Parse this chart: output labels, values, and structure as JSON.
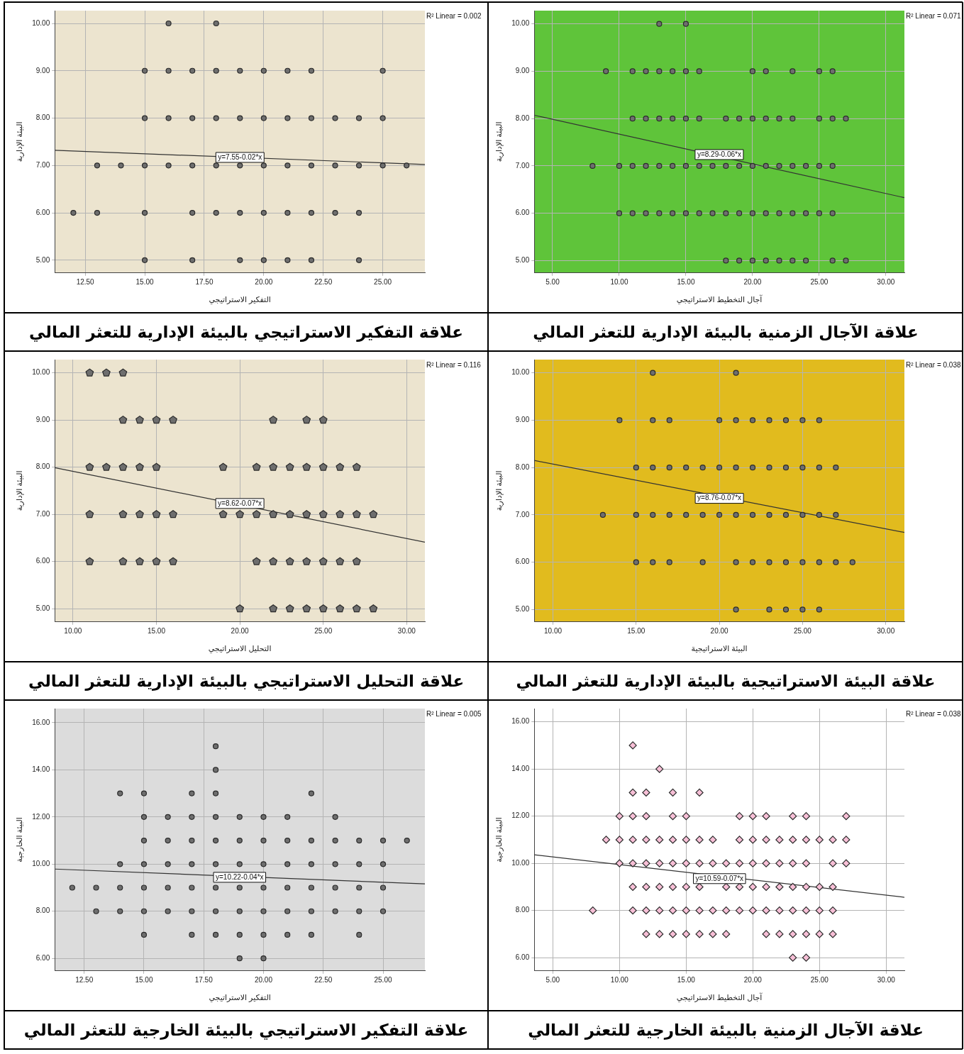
{
  "chart_data": [
    {
      "type": "scatter",
      "title": "علاقة التفكير الاستراتيجي بالبيئة الإدارية للتعثر المالي",
      "xlabel": "التفكير الاستراتيجي",
      "ylabel": "البيئة الإدارية",
      "grid": true,
      "xlim": [
        11.22,
        26.77
      ],
      "ylim": [
        4.73,
        10.27
      ],
      "xticks": [
        {
          "value": 12.5,
          "label": "12.50"
        },
        {
          "value": 15,
          "label": "15.00"
        },
        {
          "value": 17.5,
          "label": "17.50"
        },
        {
          "value": 20,
          "label": "20.00"
        },
        {
          "value": 22.5,
          "label": "22.50"
        },
        {
          "value": 25,
          "label": "25.00"
        }
      ],
      "yticks": [
        {
          "value": 5,
          "label": "5.00"
        },
        {
          "value": 6,
          "label": "6.00"
        },
        {
          "value": 7,
          "label": "7.00"
        },
        {
          "value": 8,
          "label": "8.00"
        },
        {
          "value": 9,
          "label": "9.00"
        },
        {
          "value": 10,
          "label": "10.00"
        }
      ],
      "series": [
        {
          "type": "scatter",
          "marker": "circle",
          "color": "#6e6e6e",
          "x": [
            16,
            18,
            15,
            16,
            17,
            18,
            19,
            20,
            21,
            22,
            25,
            15,
            16,
            17,
            18,
            19,
            20,
            21,
            22,
            23,
            24,
            25,
            13,
            14,
            15,
            16,
            17,
            18,
            19,
            20,
            21,
            22,
            23,
            24,
            25,
            26,
            12,
            13,
            15,
            17,
            18,
            19,
            20,
            21,
            22,
            23,
            24,
            15,
            17,
            19,
            20,
            21,
            22,
            24
          ],
          "values": [
            10,
            10,
            9,
            9,
            9,
            9,
            9,
            9,
            9,
            9,
            9,
            8,
            8,
            8,
            8,
            8,
            8,
            8,
            8,
            8,
            8,
            8,
            7,
            7,
            7,
            7,
            7,
            7,
            7,
            7,
            7,
            7,
            7,
            7,
            7,
            7,
            6,
            6,
            6,
            6,
            6,
            6,
            6,
            6,
            6,
            6,
            6,
            5,
            5,
            5,
            5,
            5,
            5,
            5
          ]
        },
        {
          "type": "line",
          "marker": "none",
          "color": "#333333",
          "x": [
            11.22,
            26.77
          ],
          "values": [
            7.32,
            7.02
          ]
        }
      ],
      "annotations": [
        "R² Linear = 0.002",
        {
          "text": "y=7.55-0.02*x",
          "x": 19,
          "y": 7.17
        }
      ]
    },
    {
      "type": "scatter",
      "title": "علاقة الآجال الزمنية بالبيئة الإدارية للتعثر المالي",
      "xlabel": "آجال التخطيط الاستراتيجي",
      "ylabel": "البيئة الإدارية",
      "grid": true,
      "xlim": [
        3.63,
        31.39
      ],
      "ylim": [
        4.74,
        10.28
      ],
      "xticks": [
        {
          "value": 5,
          "label": "5.00"
        },
        {
          "value": 10,
          "label": "10.00"
        },
        {
          "value": 15,
          "label": "15.00"
        },
        {
          "value": 20,
          "label": "20.00"
        },
        {
          "value": 25,
          "label": "25.00"
        },
        {
          "value": 30,
          "label": "30.00"
        }
      ],
      "yticks": [
        {
          "value": 5,
          "label": "5.00"
        },
        {
          "value": 6,
          "label": "6.00"
        },
        {
          "value": 7,
          "label": "7.00"
        },
        {
          "value": 8,
          "label": "8.00"
        },
        {
          "value": 9,
          "label": "9.00"
        },
        {
          "value": 10,
          "label": "10.00"
        }
      ],
      "series": [
        {
          "type": "scatter",
          "marker": "circle",
          "color": "#6e6e6e",
          "x": [
            13,
            15,
            9,
            11,
            12,
            13,
            14,
            15,
            16,
            20,
            21,
            23,
            25,
            26,
            11,
            12,
            13,
            14,
            15,
            16,
            18,
            19,
            20,
            21,
            22,
            23,
            25,
            26,
            27,
            8,
            10,
            11,
            12,
            13,
            14,
            15,
            16,
            17,
            18,
            19,
            20,
            21,
            22,
            23,
            24,
            25,
            26,
            10,
            11,
            12,
            13,
            14,
            15,
            16,
            17,
            18,
            19,
            20,
            21,
            22,
            23,
            24,
            25,
            26,
            18,
            19,
            20,
            21,
            22,
            23,
            24,
            26,
            27
          ],
          "values": [
            10,
            10,
            9,
            9,
            9,
            9,
            9,
            9,
            9,
            9,
            9,
            9,
            9,
            9,
            8,
            8,
            8,
            8,
            8,
            8,
            8,
            8,
            8,
            8,
            8,
            8,
            8,
            8,
            8,
            7,
            7,
            7,
            7,
            7,
            7,
            7,
            7,
            7,
            7,
            7,
            7,
            7,
            7,
            7,
            7,
            7,
            7,
            6,
            6,
            6,
            6,
            6,
            6,
            6,
            6,
            6,
            6,
            6,
            6,
            6,
            6,
            6,
            6,
            6,
            5,
            5,
            5,
            5,
            5,
            5,
            5,
            5,
            5
          ]
        },
        {
          "type": "line",
          "marker": "none",
          "color": "#333333",
          "x": [
            3.63,
            31.39
          ],
          "values": [
            8.07,
            6.33
          ]
        }
      ],
      "annotations": [
        "R² Linear = 0.071",
        {
          "text": "y=8.29-0.06*x",
          "x": 17.5,
          "y": 7.24
        }
      ]
    },
    {
      "type": "scatter",
      "title": "علاقة التحليل الاستراتيجي بالبيئة الإدارية للتعثر المالي",
      "xlabel": "التحليل الاستراتيجي",
      "ylabel": "البيئة الإدارية",
      "grid": true,
      "xlim": [
        8.91,
        31.09
      ],
      "ylim": [
        4.72,
        10.28
      ],
      "xticks": [
        {
          "value": 10,
          "label": "10.00"
        },
        {
          "value": 15,
          "label": "15.00"
        },
        {
          "value": 20,
          "label": "20.00"
        },
        {
          "value": 25,
          "label": "25.00"
        },
        {
          "value": 30,
          "label": "30.00"
        }
      ],
      "yticks": [
        {
          "value": 5,
          "label": "5.00"
        },
        {
          "value": 6,
          "label": "6.00"
        },
        {
          "value": 7,
          "label": "7.00"
        },
        {
          "value": 8,
          "label": "8.00"
        },
        {
          "value": 9,
          "label": "9.00"
        },
        {
          "value": 10,
          "label": "10.00"
        }
      ],
      "series": [
        {
          "type": "scatter",
          "color": "#6e6e6e",
          "x": [
            11,
            12,
            13,
            13,
            14,
            15,
            16,
            22,
            24,
            25,
            11,
            12,
            13,
            14,
            15,
            19,
            21,
            22,
            23,
            24,
            25,
            26,
            27,
            11,
            13,
            14,
            15,
            16,
            19,
            20,
            21,
            22,
            23,
            24,
            25,
            26,
            27,
            28,
            11,
            13,
            14,
            15,
            16,
            21,
            22,
            23,
            24,
            25,
            26,
            27,
            20,
            22,
            23,
            24,
            25,
            26,
            27,
            28
          ],
          "values": [
            10,
            10,
            10,
            9,
            9,
            9,
            9,
            9,
            9,
            9,
            8,
            8,
            8,
            8,
            8,
            8,
            8,
            8,
            8,
            8,
            8,
            8,
            8,
            7,
            7,
            7,
            7,
            7,
            7,
            7,
            7,
            7,
            7,
            7,
            7,
            7,
            7,
            7,
            6,
            6,
            6,
            6,
            6,
            6,
            6,
            6,
            6,
            6,
            6,
            6,
            5,
            5,
            5,
            5,
            5,
            5,
            5,
            5
          ]
        },
        {
          "type": "line",
          "marker": "none",
          "color": "#333333",
          "x": [
            8.91,
            31.09
          ],
          "values": [
            7.99,
            6.41
          ]
        }
      ],
      "annotations": [
        "R² Linear = 0.116",
        {
          "text": "y=8.62-0.07*x",
          "x": 20,
          "y": 7.23
        }
      ]
    },
    {
      "type": "scatter",
      "title": "علاقة البيئة الاستراتيجية بالبيئة الإدارية للتعثر المالي",
      "xlabel": "البيئة الاستراتيجية",
      "ylabel": "البيئة الإدارية",
      "grid": true,
      "xlim": [
        8.88,
        31.12
      ],
      "ylim": [
        4.74,
        10.28
      ],
      "xticks": [
        {
          "value": 10,
          "label": "10.00"
        },
        {
          "value": 15,
          "label": "15.00"
        },
        {
          "value": 20,
          "label": "20.00"
        },
        {
          "value": 25,
          "label": "25.00"
        },
        {
          "value": 30,
          "label": "30.00"
        }
      ],
      "yticks": [
        {
          "value": 5,
          "label": "5.00"
        },
        {
          "value": 6,
          "label": "6.00"
        },
        {
          "value": 7,
          "label": "7.00"
        },
        {
          "value": 8,
          "label": "8.00"
        },
        {
          "value": 9,
          "label": "9.00"
        },
        {
          "value": 10,
          "label": "10.00"
        }
      ],
      "series": [
        {
          "type": "scatter",
          "marker": "circle",
          "color": "#6e6e6e",
          "x": [
            16,
            21,
            14,
            16,
            17,
            20,
            21,
            22,
            23,
            24,
            25,
            26,
            15,
            16,
            17,
            18,
            19,
            20,
            21,
            22,
            23,
            24,
            25,
            26,
            27,
            13,
            15,
            16,
            17,
            18,
            19,
            20,
            21,
            22,
            23,
            24,
            25,
            26,
            27,
            15,
            16,
            17,
            19,
            21,
            22,
            23,
            24,
            25,
            26,
            27,
            28,
            21,
            23,
            24,
            25,
            26
          ],
          "values": [
            10,
            10,
            9,
            9,
            9,
            9,
            9,
            9,
            9,
            9,
            9,
            9,
            8,
            8,
            8,
            8,
            8,
            8,
            8,
            8,
            8,
            8,
            8,
            8,
            8,
            7,
            7,
            7,
            7,
            7,
            7,
            7,
            7,
            7,
            7,
            7,
            7,
            7,
            7,
            6,
            6,
            6,
            6,
            6,
            6,
            6,
            6,
            6,
            6,
            6,
            6,
            5,
            5,
            5,
            5,
            5
          ]
        },
        {
          "type": "line",
          "marker": "none",
          "color": "#333333",
          "x": [
            8.88,
            31.12
          ],
          "values": [
            8.15,
            6.63
          ]
        }
      ],
      "annotations": [
        "R² Linear = 0.038",
        {
          "text": "y=8.76-0.07*x",
          "x": 20,
          "y": 7.35
        }
      ]
    },
    {
      "type": "scatter",
      "title": "علاقة التفكير الاستراتيجي بالبيئة الخارجية للتعثر المالي",
      "xlabel": "التفكير الاستراتيجي",
      "ylabel": "البيئة الخارجية",
      "grid": true,
      "xlim": [
        11.27,
        26.75
      ],
      "ylim": [
        5.47,
        16.6
      ],
      "xticks": [
        {
          "value": 12.5,
          "label": "12.50"
        },
        {
          "value": 15,
          "label": "15.00"
        },
        {
          "value": 17.5,
          "label": "17.50"
        },
        {
          "value": 20,
          "label": "20.00"
        },
        {
          "value": 22.5,
          "label": "22.50"
        },
        {
          "value": 25,
          "label": "25.00"
        }
      ],
      "yticks": [
        {
          "value": 6,
          "label": "6.00"
        },
        {
          "value": 8,
          "label": "8.00"
        },
        {
          "value": 10,
          "label": "10.00"
        },
        {
          "value": 12,
          "label": "12.00"
        },
        {
          "value": 14,
          "label": "14.00"
        },
        {
          "value": 16,
          "label": "16.00"
        }
      ],
      "series": [
        {
          "type": "scatter",
          "marker": "circle",
          "color": "#6e6e6e",
          "x": [
            18,
            18,
            14,
            15,
            17,
            18,
            22,
            15,
            16,
            17,
            18,
            19,
            20,
            21,
            23,
            15,
            16,
            17,
            18,
            19,
            20,
            21,
            22,
            23,
            24,
            25,
            26,
            14,
            15,
            16,
            17,
            18,
            19,
            20,
            21,
            22,
            23,
            24,
            25,
            12,
            13,
            14,
            15,
            16,
            17,
            18,
            19,
            20,
            21,
            22,
            23,
            24,
            25,
            13,
            14,
            15,
            16,
            17,
            18,
            19,
            20,
            21,
            22,
            23,
            24,
            25,
            15,
            17,
            18,
            19,
            20,
            21,
            22,
            24,
            19,
            20
          ],
          "values": [
            15,
            14,
            13,
            13,
            13,
            13,
            13,
            12,
            12,
            12,
            12,
            12,
            12,
            12,
            12,
            11,
            11,
            11,
            11,
            11,
            11,
            11,
            11,
            11,
            11,
            11,
            11,
            10,
            10,
            10,
            10,
            10,
            10,
            10,
            10,
            10,
            10,
            10,
            10,
            9,
            9,
            9,
            9,
            9,
            9,
            9,
            9,
            9,
            9,
            9,
            9,
            9,
            9,
            8,
            8,
            8,
            8,
            8,
            8,
            8,
            8,
            8,
            8,
            8,
            8,
            8,
            7,
            7,
            7,
            7,
            7,
            7,
            7,
            7,
            6,
            6
          ]
        },
        {
          "type": "line",
          "marker": "none",
          "color": "#333333",
          "x": [
            11.27,
            26.75
          ],
          "values": [
            9.79,
            9.16
          ]
        }
      ],
      "annotations": [
        "R² Linear = 0.005",
        {
          "text": "y=10.22-0.04*x",
          "x": 19,
          "y": 9.44
        }
      ]
    },
    {
      "type": "scatter",
      "title": "علاقة الآجال الزمنية بالبيئة الخارجية للتعثر المالي",
      "xlabel": "آجال التخطيط الاستراتيجي",
      "ylabel": "البيئة الخارجية",
      "grid": true,
      "xlim": [
        3.61,
        31.37
      ],
      "ylim": [
        5.44,
        16.56
      ],
      "xticks": [
        {
          "value": 5,
          "label": "5.00"
        },
        {
          "value": 10,
          "label": "10.00"
        },
        {
          "value": 15,
          "label": "15.00"
        },
        {
          "value": 20,
          "label": "20.00"
        },
        {
          "value": 25,
          "label": "25.00"
        },
        {
          "value": 30,
          "label": "30.00"
        }
      ],
      "yticks": [
        {
          "value": 6,
          "label": "6.00"
        },
        {
          "value": 8,
          "label": "8.00"
        },
        {
          "value": 10,
          "label": "10.00"
        },
        {
          "value": 12,
          "label": "12.00"
        },
        {
          "value": 14,
          "label": "14.00"
        },
        {
          "value": 16,
          "label": "16.00"
        }
      ],
      "series": [
        {
          "type": "scatter",
          "marker": "diamond",
          "color": "#f7bfd6",
          "x": [
            11,
            13,
            11,
            12,
            14,
            16,
            10,
            11,
            12,
            14,
            15,
            19,
            20,
            21,
            23,
            24,
            27,
            9,
            10,
            11,
            12,
            13,
            14,
            15,
            16,
            17,
            19,
            20,
            21,
            22,
            23,
            24,
            25,
            26,
            27,
            10,
            11,
            12,
            13,
            14,
            15,
            16,
            17,
            18,
            19,
            20,
            21,
            22,
            23,
            24,
            26,
            27,
            11,
            12,
            13,
            14,
            15,
            16,
            18,
            19,
            20,
            21,
            22,
            23,
            24,
            25,
            26,
            8,
            11,
            12,
            13,
            14,
            15,
            16,
            17,
            18,
            19,
            20,
            21,
            22,
            23,
            24,
            25,
            26,
            12,
            13,
            14,
            15,
            16,
            17,
            18,
            21,
            22,
            23,
            24,
            25,
            26,
            23,
            24
          ],
          "values": [
            15,
            14,
            13,
            13,
            13,
            13,
            12,
            12,
            12,
            12,
            12,
            12,
            12,
            12,
            12,
            12,
            12,
            11,
            11,
            11,
            11,
            11,
            11,
            11,
            11,
            11,
            11,
            11,
            11,
            11,
            11,
            11,
            11,
            11,
            11,
            10,
            10,
            10,
            10,
            10,
            10,
            10,
            10,
            10,
            10,
            10,
            10,
            10,
            10,
            10,
            10,
            10,
            9,
            9,
            9,
            9,
            9,
            9,
            9,
            9,
            9,
            9,
            9,
            9,
            9,
            9,
            9,
            8,
            8,
            8,
            8,
            8,
            8,
            8,
            8,
            8,
            8,
            8,
            8,
            8,
            8,
            8,
            8,
            8,
            7,
            7,
            7,
            7,
            7,
            7,
            7,
            7,
            7,
            7,
            7,
            7,
            7,
            6,
            6
          ]
        },
        {
          "type": "line",
          "marker": "none",
          "color": "#333333",
          "x": [
            3.61,
            31.37
          ],
          "values": [
            10.36,
            8.56
          ]
        }
      ],
      "annotations": [
        "R² Linear = 0.038",
        {
          "text": "y=10.59-0.07*x",
          "x": 17.5,
          "y": 9.35
        }
      ]
    }
  ]
}
